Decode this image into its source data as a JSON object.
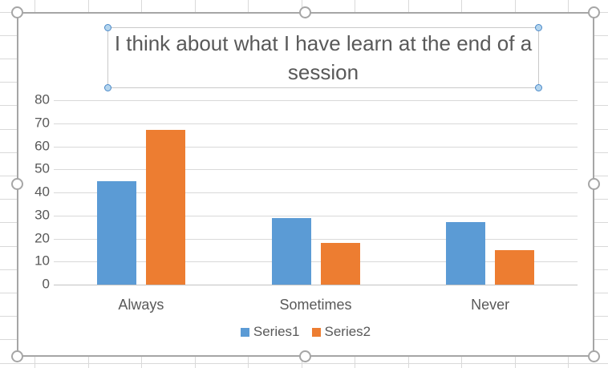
{
  "app": {
    "context": "spreadsheet-embedded-chart",
    "selection": "chart selected with title text box selected"
  },
  "colors": {
    "series1": "#5b9bd5",
    "series2": "#ed7d31",
    "text": "#595959",
    "chart_border": "#a6a6a6",
    "chart_gridline": "#d9d9d9",
    "sheet_gridline": "#d9d9d9",
    "resize_handle_fill": "#ffffff",
    "resize_handle_stroke": "#a6a6a6",
    "title_handle_fill": "#b4d5ee",
    "title_handle_stroke": "#4a89c8"
  },
  "chart_data": {
    "type": "bar",
    "title": "I think about what I have learn at the end of a session",
    "categories": [
      "Always",
      "Sometimes",
      "Never"
    ],
    "series": [
      {
        "name": "Series1",
        "color": "#5b9bd5",
        "values": [
          45,
          29,
          27
        ]
      },
      {
        "name": "Series2",
        "color": "#ed7d31",
        "values": [
          67,
          18,
          15
        ]
      }
    ],
    "xlabel": "",
    "ylabel": "",
    "ylim": [
      0,
      80
    ],
    "ytick_step": 10,
    "grid": true,
    "legend_position": "bottom"
  }
}
